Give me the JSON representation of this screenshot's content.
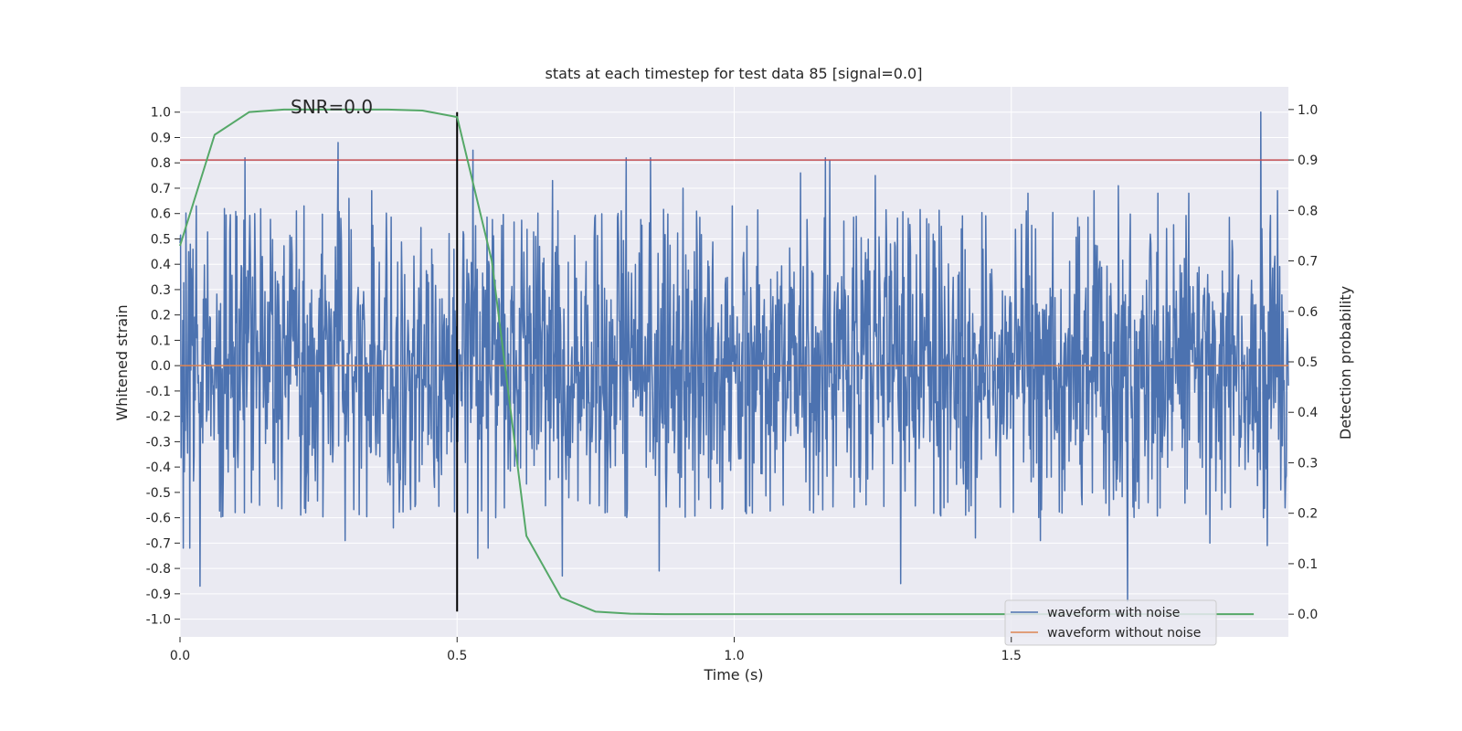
{
  "chart_data": {
    "type": "line",
    "title": "stats at each timestep for test data 85 [signal=0.0]",
    "xlabel": "Time (s)",
    "ylabel": "Whitened strain",
    "ylabel_right": "Detection probability",
    "xlim": [
      0.0,
      2.0
    ],
    "ylim": [
      -1.07,
      1.1
    ],
    "ylim_right": [
      -0.045,
      1.045
    ],
    "x_ticks": [
      "0.0",
      "0.5",
      "1.0",
      "1.5"
    ],
    "x_tick_values": [
      0.0,
      0.5,
      1.0,
      1.5
    ],
    "y_ticks": [
      "1.0",
      "0.9",
      "0.8",
      "0.7",
      "0.6",
      "0.5",
      "0.4",
      "0.3",
      "0.2",
      "0.1",
      "0.0",
      "-0.1",
      "-0.2",
      "-0.3",
      "-0.4",
      "-0.5",
      "-0.6",
      "-0.7",
      "-0.8",
      "-0.9",
      "-1.0"
    ],
    "y_tick_values": [
      1.0,
      0.9,
      0.8,
      0.7,
      0.6,
      0.5,
      0.4,
      0.3,
      0.2,
      0.1,
      0.0,
      -0.1,
      -0.2,
      -0.3,
      -0.4,
      -0.5,
      -0.6,
      -0.7,
      -0.8,
      -0.9,
      -1.0
    ],
    "y_right_ticks": [
      "1.0",
      "0.9",
      "0.8",
      "0.7",
      "0.6",
      "0.5",
      "0.4",
      "0.3",
      "0.2",
      "0.1",
      "0.0"
    ],
    "y_right_tick_values": [
      1.0,
      0.9,
      0.8,
      0.7,
      0.6,
      0.5,
      0.4,
      0.3,
      0.2,
      0.1,
      0.0
    ],
    "annotation": "SNR=0.0",
    "annotation_at": [
      0.2,
      1.02
    ],
    "vertical_line_x": 0.5,
    "vertical_line_range": [
      -0.97,
      1.0
    ],
    "threshold_line_right_y": 0.9,
    "legend_position": "lower-right",
    "series": [
      {
        "name": "waveform with noise",
        "color": "#4c72b0",
        "axis": "left",
        "sample_count": 2048,
        "x_range": [
          0.0,
          2.0
        ],
        "noise_sigma": 0.3,
        "peaks": [
          {
            "x": 0.117,
            "y": 0.82
          },
          {
            "x": 0.285,
            "y": 0.88
          },
          {
            "x": 0.529,
            "y": 0.85
          },
          {
            "x": 0.805,
            "y": 0.82
          },
          {
            "x": 0.849,
            "y": 0.82
          },
          {
            "x": 1.165,
            "y": 0.82
          },
          {
            "x": 1.172,
            "y": 0.81
          },
          {
            "x": 1.95,
            "y": 1.0
          },
          {
            "x": 0.036,
            "y": -0.87
          },
          {
            "x": 0.69,
            "y": -0.83
          },
          {
            "x": 0.865,
            "y": -0.81
          },
          {
            "x": 1.3,
            "y": -0.86
          },
          {
            "x": 1.71,
            "y": -0.93
          },
          {
            "x": 0.006,
            "y": -0.72
          },
          {
            "x": 0.018,
            "y": -0.72
          },
          {
            "x": 0.298,
            "y": -0.69
          },
          {
            "x": 0.385,
            "y": -0.64
          },
          {
            "x": 0.537,
            "y": -0.76
          },
          {
            "x": 0.556,
            "y": -0.72
          },
          {
            "x": 0.029,
            "y": 0.63
          },
          {
            "x": 0.08,
            "y": 0.62
          },
          {
            "x": 0.224,
            "y": 0.63
          },
          {
            "x": 0.305,
            "y": 0.66
          },
          {
            "x": 0.346,
            "y": 0.69
          },
          {
            "x": 0.672,
            "y": 0.73
          },
          {
            "x": 0.908,
            "y": 0.7
          },
          {
            "x": 0.997,
            "y": 0.63
          },
          {
            "x": 1.12,
            "y": 0.76
          },
          {
            "x": 1.255,
            "y": 0.75
          },
          {
            "x": 1.53,
            "y": 0.68
          },
          {
            "x": 1.649,
            "y": 0.69
          },
          {
            "x": 1.693,
            "y": 0.71
          },
          {
            "x": 1.765,
            "y": 0.68
          },
          {
            "x": 1.82,
            "y": 0.68
          },
          {
            "x": 1.98,
            "y": 0.69
          },
          {
            "x": 1.962,
            "y": -0.71
          },
          {
            "x": 1.858,
            "y": -0.7
          },
          {
            "x": 1.553,
            "y": -0.69
          },
          {
            "x": 1.435,
            "y": -0.68
          }
        ]
      },
      {
        "name": "waveform without noise",
        "color": "#dd8452",
        "axis": "left",
        "x": [
          0.0,
          2.0
        ],
        "y": [
          0.0,
          0.0
        ]
      },
      {
        "name": "detection probability",
        "color": "#55a868",
        "axis": "right",
        "x": [
          0.0,
          0.0625,
          0.125,
          0.1875,
          0.25,
          0.3125,
          0.375,
          0.4375,
          0.5,
          0.5625,
          0.625,
          0.6875,
          0.75,
          0.8125,
          0.875,
          1.0,
          1.25,
          1.5,
          1.75,
          1.9375
        ],
        "y": [
          0.73,
          0.95,
          0.995,
          1.0,
          1.0,
          1.0,
          1.0,
          0.998,
          0.985,
          0.7,
          0.155,
          0.033,
          0.005,
          0.001,
          0.0,
          0.0,
          0.0,
          0.0,
          0.0,
          0.0
        ]
      }
    ],
    "threshold_color": "#c44e52",
    "vertical_line_color": "#000000",
    "plot_background": "#eaeaf2",
    "grid_color": "#ffffff"
  }
}
